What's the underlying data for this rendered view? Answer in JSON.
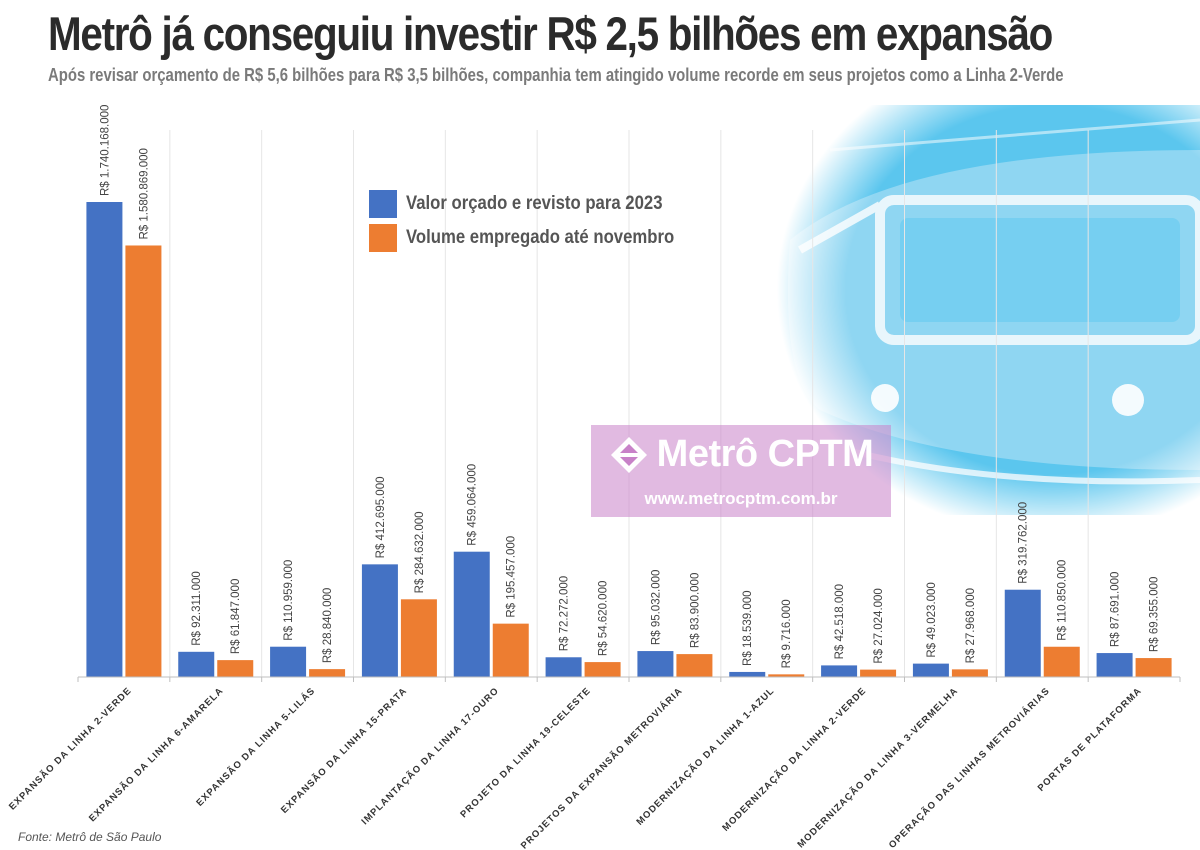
{
  "header": {
    "title": "Metrô já conseguiu investir R$ 2,5 bilhões em expansão",
    "subtitle": "Após revisar orçamento de R$ 5,6 bilhões para R$ 3,5 bilhões, companhia tem atingido volume recorde em seus projetos como a Linha 2-Verde"
  },
  "watermark": {
    "brand": "Metrô CPTM",
    "url": "www.metrocptm.com.br"
  },
  "source": "Fonte: Metrô de São Paulo",
  "colors": {
    "budget": "#4472c4",
    "spent": "#ed7d31",
    "photo": "#5bc6ee",
    "title": "#2b2b2b"
  },
  "chart_data": {
    "type": "bar",
    "title": "",
    "xlabel": "",
    "ylabel": "",
    "ylim": [
      0,
      1740168000
    ],
    "grid": "vertical separators between categories",
    "legend_position": "top-center",
    "categories": [
      "EXPANSÃO DA LINHA 2-VERDE",
      "EXPANSÃO DA LINHA 6-AMARELA",
      "EXPANSÃO DA LINHA 5-LILÁS",
      "EXPANSÃO DA LINHA 15-PRATA",
      "IMPLANTAÇÃO DA LINHA 17-OURO",
      "PROJETO DA LINHA 19-CELESTE",
      "PROJETOS DA EXPANSÃO METROVIÁRIA",
      "MODERNIZAÇÃO DA LINHA 1-AZUL",
      "MODERNIZAÇÃO DA LINHA 2-VERDE",
      "MODERNIZAÇÃO DA LINHA 3-VERMELHA",
      "OPERAÇÃO DAS LINHAS METROVIÁRIAS",
      "PORTAS DE PLATAFORMA"
    ],
    "series": [
      {
        "name": "Valor orçado e revisto para 2023",
        "color": "#4472c4",
        "values": [
          1740168000,
          92311000,
          110959000,
          412695000,
          459064000,
          72272000,
          95032000,
          18539000,
          42518000,
          49023000,
          319762000,
          87691000
        ],
        "labels": [
          "R$ 1.740.168.000",
          "R$ 92.311.000",
          "R$ 110.959.000",
          "R$ 412.695.000",
          "R$ 459.064.000",
          "R$ 72.272.000",
          "R$ 95.032.000",
          "R$ 18.539.000",
          "R$ 42.518.000",
          "R$ 49.023.000",
          "R$ 319.762.000",
          "R$ 87.691.000"
        ]
      },
      {
        "name": "Volume empregado até novembro",
        "color": "#ed7d31",
        "values": [
          1580869000,
          61847000,
          28840000,
          284632000,
          195457000,
          54620000,
          83900000,
          9716000,
          27024000,
          27968000,
          110850000,
          69355000
        ],
        "labels": [
          "R$ 1.580.869.000",
          "R$ 61.847.000",
          "R$ 28.840.000",
          "R$ 284.632.000",
          "R$ 195.457.000",
          "R$ 54.620.000",
          "R$ 83.900.000",
          "R$ 9.716.000",
          "R$ 27.024.000",
          "R$ 27.968.000",
          "R$ 110.850.000",
          "R$ 69.355.000"
        ]
      }
    ]
  }
}
